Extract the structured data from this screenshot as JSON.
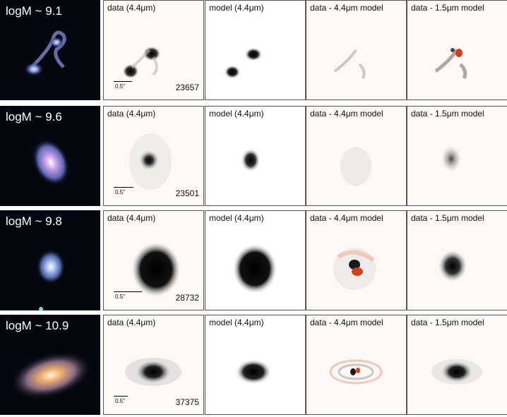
{
  "rows": [
    {
      "mass_label": "logM ~ 9.1",
      "id": "23657",
      "scale": "0.5\""
    },
    {
      "mass_label": "logM ~ 9.6",
      "id": "23501",
      "scale": "0.5\""
    },
    {
      "mass_label": "logM ~ 9.8",
      "id": "28732",
      "scale": "0.5\""
    },
    {
      "mass_label": "logM ~ 10.9",
      "id": "37375",
      "scale": "0.5\""
    }
  ],
  "panel_titles": {
    "data": "data (4.4μm)",
    "model": "model (4.4μm)",
    "resid44": "data - 4.4μm model",
    "resid15": "data - 1.5μm model"
  }
}
